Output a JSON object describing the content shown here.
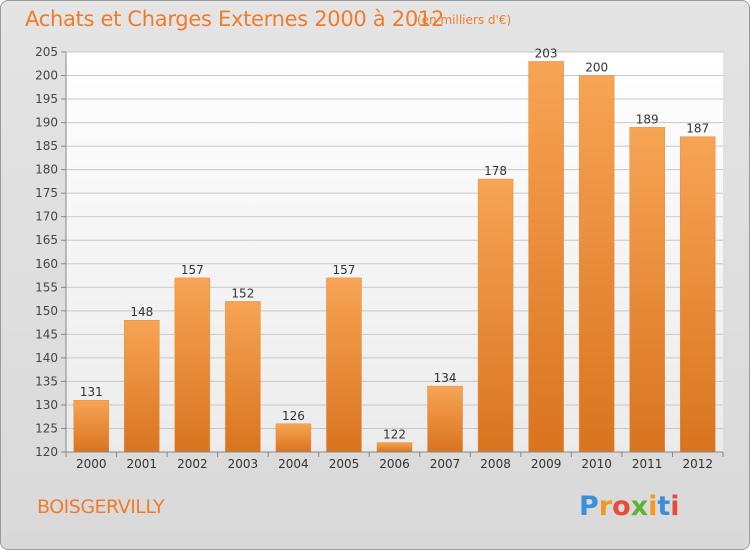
{
  "header": {
    "title": "Achats et Charges Externes 2000 à 2012",
    "subtitle": "(en milliers d'€)"
  },
  "footer": {
    "city": "BOISGERVILLY",
    "logo_letters": [
      "P",
      "r",
      "o",
      "x",
      "i",
      "t",
      "i"
    ],
    "logo_colors": [
      "#3a8fd8",
      "#f29a1f",
      "#e84b3a",
      "#5cb338",
      "#f29a1f",
      "#3a8fd8",
      "#e84b3a"
    ]
  },
  "colors": {
    "bar_light": "#f7a455",
    "bar_dark": "#d9741f",
    "accent": "#f07c2a"
  },
  "chart_data": {
    "type": "bar",
    "title": "Achats et Charges Externes 2000 à 2012",
    "subtitle": "(en milliers d'€)",
    "xlabel": "",
    "ylabel": "",
    "categories": [
      "2000",
      "2001",
      "2002",
      "2003",
      "2004",
      "2005",
      "2006",
      "2007",
      "2008",
      "2009",
      "2010",
      "2011",
      "2012"
    ],
    "values": [
      131,
      148,
      157,
      152,
      126,
      157,
      122,
      134,
      178,
      203,
      200,
      189,
      187
    ],
    "ylim": [
      120,
      205
    ],
    "yticks": [
      120,
      125,
      130,
      135,
      140,
      145,
      150,
      155,
      160,
      165,
      170,
      175,
      180,
      185,
      190,
      195,
      200,
      205
    ],
    "grid": true,
    "legend": "none"
  }
}
